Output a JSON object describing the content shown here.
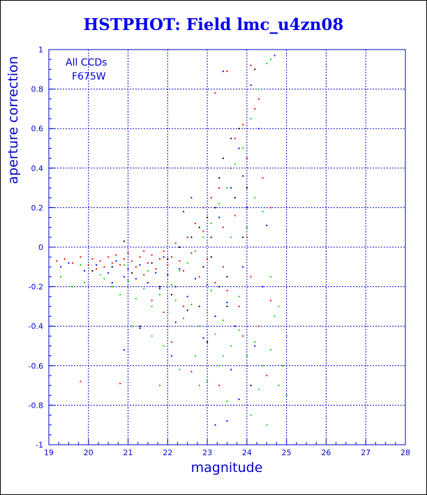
{
  "chart_data": {
    "type": "scatter",
    "title": "HSTPHOT: Field lmc_u4zn08",
    "xlabel": "magnitude",
    "ylabel": "aperture correction",
    "xlim": [
      19,
      28
    ],
    "ylim": [
      -1,
      1
    ],
    "grid": true,
    "x_ticks": [
      "19",
      "20",
      "21",
      "22",
      "23",
      "24",
      "25",
      "26",
      "27",
      "28"
    ],
    "y_ticks": [
      "1",
      "0.8",
      "0.6",
      "0.4",
      "0.2",
      "0",
      "-0.2",
      "-0.4",
      "-0.6",
      "-0.8",
      "-1"
    ],
    "annotations": [
      "All CCDs",
      "F675W"
    ],
    "colors": {
      "axis": "#0000cc",
      "grid": "#0000cc",
      "title": "#0000ee"
    },
    "series": [
      {
        "color": "#ff0000",
        "points": [
          [
            19.2,
            -0.07
          ],
          [
            19.4,
            -0.06
          ],
          [
            19.6,
            -0.08
          ],
          [
            19.8,
            -0.05
          ],
          [
            20.0,
            -0.09
          ],
          [
            20.1,
            -0.06
          ],
          [
            20.3,
            -0.07
          ],
          [
            20.4,
            -0.1
          ],
          [
            20.5,
            -0.05
          ],
          [
            20.6,
            -0.08
          ],
          [
            20.7,
            -0.04
          ],
          [
            20.8,
            -0.09
          ],
          [
            20.9,
            -0.06
          ],
          [
            21.0,
            -0.03
          ],
          [
            21.1,
            -0.07
          ],
          [
            21.2,
            -0.1
          ],
          [
            21.3,
            -0.05
          ],
          [
            21.4,
            -0.02
          ],
          [
            21.5,
            -0.08
          ],
          [
            21.6,
            -0.04
          ],
          [
            21.7,
            -0.11
          ],
          [
            21.8,
            -0.06
          ],
          [
            21.9,
            -0.02
          ],
          [
            22.0,
            -0.09
          ],
          [
            22.1,
            -0.05
          ],
          [
            22.2,
            0.02
          ],
          [
            22.3,
            -0.07
          ],
          [
            22.4,
            -0.12
          ],
          [
            22.5,
            0.05
          ],
          [
            22.6,
            -0.03
          ],
          [
            22.7,
            0.12
          ],
          [
            22.8,
            -0.15
          ],
          [
            22.9,
            0.2
          ],
          [
            23.0,
            -0.06
          ],
          [
            23.1,
            0.25
          ],
          [
            23.2,
            -0.18
          ],
          [
            23.3,
            0.3
          ],
          [
            23.4,
            0.1
          ],
          [
            23.5,
            -0.22
          ],
          [
            23.6,
            0.4
          ],
          [
            23.7,
            0.55
          ],
          [
            23.8,
            -0.3
          ],
          [
            23.9,
            0.62
          ],
          [
            24.0,
            0.05
          ],
          [
            24.1,
            -0.15
          ],
          [
            24.2,
            0.7
          ],
          [
            24.3,
            -0.4
          ],
          [
            24.4,
            0.35
          ],
          [
            24.5,
            -0.65
          ],
          [
            24.6,
            0.2
          ],
          [
            19.8,
            -0.68
          ],
          [
            20.8,
            -0.69
          ],
          [
            23.5,
            0.89
          ],
          [
            24.1,
            0.92
          ],
          [
            24.3,
            0.75
          ],
          [
            23.9,
            -0.45
          ],
          [
            22.6,
            -0.63
          ],
          [
            22.1,
            -0.48
          ],
          [
            21.6,
            -0.27
          ],
          [
            21.9,
            -0.33
          ],
          [
            23.2,
            0.78
          ],
          [
            23.7,
            0.16
          ],
          [
            24.0,
            0.45
          ],
          [
            22.9,
            0.08
          ],
          [
            23.4,
            -0.1
          ],
          [
            21.4,
            -0.14
          ],
          [
            20.2,
            -0.11
          ],
          [
            24.6,
            -0.27
          ],
          [
            23.3,
            -0.7
          ],
          [
            22.4,
            -0.3
          ]
        ]
      },
      {
        "color": "#0000ff",
        "points": [
          [
            19.3,
            -0.1
          ],
          [
            19.5,
            -0.08
          ],
          [
            19.9,
            -0.12
          ],
          [
            20.2,
            -0.09
          ],
          [
            20.5,
            -0.13
          ],
          [
            20.7,
            -0.07
          ],
          [
            20.9,
            -0.15
          ],
          [
            21.0,
            -0.11
          ],
          [
            21.2,
            -0.16
          ],
          [
            21.3,
            -0.09
          ],
          [
            21.5,
            -0.18
          ],
          [
            21.7,
            -0.13
          ],
          [
            21.8,
            -0.21
          ],
          [
            22.0,
            -0.14
          ],
          [
            22.2,
            -0.2
          ],
          [
            22.3,
            -0.11
          ],
          [
            22.5,
            -0.25
          ],
          [
            22.7,
            -0.16
          ],
          [
            22.8,
            -0.3
          ],
          [
            23.0,
            -0.19
          ],
          [
            23.1,
            0.05
          ],
          [
            23.2,
            -0.35
          ],
          [
            23.3,
            0.15
          ],
          [
            23.5,
            -0.28
          ],
          [
            23.6,
            0.3
          ],
          [
            23.7,
            -0.4
          ],
          [
            23.8,
            0.5
          ],
          [
            23.9,
            -0.1
          ],
          [
            24.0,
            0.2
          ],
          [
            24.2,
            -0.5
          ],
          [
            24.3,
            0.6
          ],
          [
            24.4,
            -0.2
          ],
          [
            24.7,
            0.97
          ],
          [
            23.4,
            0.89
          ],
          [
            22.9,
            -0.46
          ],
          [
            23.2,
            -0.9
          ],
          [
            23.5,
            -0.88
          ],
          [
            21.3,
            -0.41
          ],
          [
            22.1,
            -0.55
          ],
          [
            23.6,
            -0.62
          ],
          [
            24.1,
            0.82
          ],
          [
            23.9,
            0.36
          ],
          [
            22.6,
            0.25
          ],
          [
            22.4,
            0.18
          ],
          [
            21.9,
            -0.05
          ],
          [
            20.9,
            -0.52
          ],
          [
            20.6,
            -0.18
          ],
          [
            24.5,
            0.11
          ],
          [
            23.8,
            -0.77
          ],
          [
            22.2,
            -0.38
          ]
        ]
      },
      {
        "color": "#00dd00",
        "points": [
          [
            19.3,
            -0.15
          ],
          [
            19.6,
            -0.2
          ],
          [
            19.9,
            -0.18
          ],
          [
            20.3,
            -0.14
          ],
          [
            20.6,
            -0.2
          ],
          [
            20.8,
            -0.24
          ],
          [
            21.0,
            -0.17
          ],
          [
            21.2,
            -0.26
          ],
          [
            21.4,
            -0.21
          ],
          [
            21.6,
            -0.3
          ],
          [
            21.8,
            -0.24
          ],
          [
            22.0,
            -0.33
          ],
          [
            22.2,
            -0.27
          ],
          [
            22.4,
            -0.36
          ],
          [
            22.6,
            -0.29
          ],
          [
            22.8,
            -0.4
          ],
          [
            23.0,
            -0.33
          ],
          [
            23.2,
            -0.44
          ],
          [
            23.4,
            -0.37
          ],
          [
            23.6,
            -0.5
          ],
          [
            23.8,
            -0.42
          ],
          [
            24.0,
            -0.55
          ],
          [
            24.2,
            -0.48
          ],
          [
            24.4,
            -0.6
          ],
          [
            24.6,
            -0.52
          ],
          [
            24.8,
            -0.7
          ],
          [
            25.0,
            -0.75
          ],
          [
            24.5,
            0.93
          ],
          [
            24.6,
            0.95
          ],
          [
            24.3,
            0.8
          ],
          [
            24.1,
            0.65
          ],
          [
            23.9,
            0.5
          ],
          [
            23.7,
            0.42
          ],
          [
            23.5,
            0.3
          ],
          [
            23.3,
            0.22
          ],
          [
            23.1,
            0.12
          ],
          [
            22.9,
            0.05
          ],
          [
            22.7,
            -0.02
          ],
          [
            22.5,
            -0.08
          ],
          [
            22.3,
            -0.12
          ],
          [
            24.4,
            0.18
          ],
          [
            24.7,
            -0.35
          ],
          [
            24.9,
            -0.6
          ],
          [
            21.8,
            -0.7
          ],
          [
            22.3,
            -0.62
          ],
          [
            23.0,
            -0.68
          ],
          [
            23.5,
            -0.78
          ],
          [
            24.1,
            -0.85
          ],
          [
            24.5,
            -0.9
          ],
          [
            23.4,
            -0.55
          ],
          [
            22.7,
            -0.55
          ],
          [
            21.6,
            -0.45
          ],
          [
            21.1,
            -0.4
          ],
          [
            20.4,
            -0.16
          ],
          [
            19.8,
            -0.09
          ],
          [
            24.2,
            0.25
          ],
          [
            24.6,
            -0.15
          ],
          [
            23.8,
            -0.25
          ],
          [
            23.1,
            -0.22
          ],
          [
            22.1,
            -0.19
          ],
          [
            21.5,
            -0.12
          ],
          [
            20.9,
            -0.09
          ],
          [
            24.8,
            -0.3
          ],
          [
            25.0,
            -0.45
          ],
          [
            24.0,
            0.1
          ],
          [
            23.6,
            0.05
          ],
          [
            23.3,
            -0.6
          ],
          [
            22.8,
            -0.7
          ],
          [
            21.9,
            -0.5
          ],
          [
            24.3,
            -0.72
          ]
        ]
      },
      {
        "color": "#000000",
        "points": [
          [
            20.1,
            -0.12
          ],
          [
            20.6,
            -0.1
          ],
          [
            21.1,
            -0.13
          ],
          [
            21.6,
            -0.08
          ],
          [
            22.0,
            -0.06
          ],
          [
            22.3,
            0.0
          ],
          [
            22.6,
            0.05
          ],
          [
            22.8,
            0.1
          ],
          [
            23.0,
            0.15
          ],
          [
            23.1,
            -0.05
          ],
          [
            23.2,
            0.2
          ],
          [
            23.3,
            0.35
          ],
          [
            23.4,
            0.45
          ],
          [
            23.5,
            -0.15
          ],
          [
            23.6,
            0.55
          ],
          [
            23.7,
            0.25
          ],
          [
            23.8,
            0.6
          ],
          [
            23.9,
            0.05
          ],
          [
            24.0,
            0.3
          ],
          [
            24.2,
            0.9
          ],
          [
            21.3,
            -0.4
          ],
          [
            22.1,
            -0.24
          ],
          [
            22.5,
            -0.32
          ],
          [
            23.0,
            -0.48
          ],
          [
            23.5,
            -0.3
          ],
          [
            24.1,
            -0.7
          ],
          [
            23.3,
            -0.2
          ],
          [
            22.9,
            -0.1
          ],
          [
            21.8,
            -0.2
          ],
          [
            20.9,
            0.03
          ]
        ]
      }
    ]
  }
}
